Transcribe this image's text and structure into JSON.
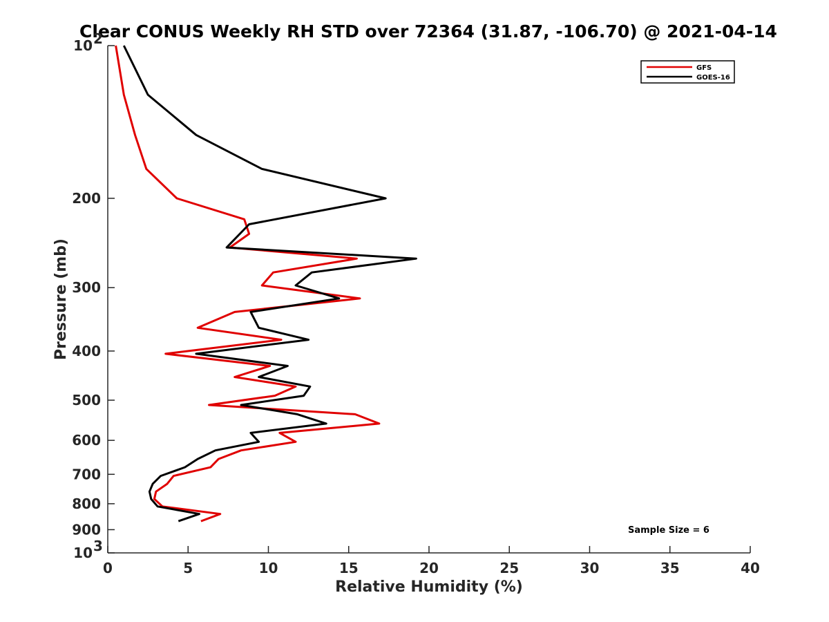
{
  "chart_data": {
    "type": "line",
    "title": "Clear CONUS Weekly RH STD over 72364 (31.87, -106.70) @ 2021-04-14",
    "xlabel": "Relative Humidity (%)",
    "ylabel": "Pressure (mb)",
    "xlim": [
      0,
      40
    ],
    "ylim": [
      100,
      1000
    ],
    "yscale": "log",
    "y_reversed": true,
    "grid": false,
    "legend_position": "top-right",
    "x_ticks": [
      "0",
      "5",
      "10",
      "15",
      "20",
      "25",
      "30",
      "35",
      "40"
    ],
    "y_ticks": [
      {
        "value": 100,
        "label": "10",
        "sup": "2"
      },
      {
        "value": 200,
        "label": "200"
      },
      {
        "value": 300,
        "label": "300"
      },
      {
        "value": 400,
        "label": "400"
      },
      {
        "value": 500,
        "label": "500"
      },
      {
        "value": 600,
        "label": "600"
      },
      {
        "value": 700,
        "label": "700"
      },
      {
        "value": 800,
        "label": "800"
      },
      {
        "value": 900,
        "label": "900"
      },
      {
        "value": 1000,
        "label": "10",
        "sup": "3"
      }
    ],
    "series": [
      {
        "name": "GFS",
        "color": "#e00000",
        "points": [
          [
            0.5,
            100
          ],
          [
            1.0,
            125
          ],
          [
            1.7,
            150
          ],
          [
            2.4,
            175
          ],
          [
            4.3,
            200
          ],
          [
            8.5,
            220
          ],
          [
            8.8,
            235
          ],
          [
            7.6,
            250
          ],
          [
            15.5,
            263
          ],
          [
            10.3,
            280
          ],
          [
            9.6,
            297
          ],
          [
            15.7,
            315
          ],
          [
            7.9,
            335
          ],
          [
            5.6,
            360
          ],
          [
            10.8,
            380
          ],
          [
            3.6,
            405
          ],
          [
            10.1,
            428
          ],
          [
            7.9,
            450
          ],
          [
            11.7,
            470
          ],
          [
            10.4,
            490
          ],
          [
            6.3,
            511
          ],
          [
            15.4,
            533
          ],
          [
            16.9,
            556
          ],
          [
            10.7,
            580
          ],
          [
            11.7,
            604
          ],
          [
            8.3,
            628
          ],
          [
            6.9,
            653
          ],
          [
            6.4,
            678
          ],
          [
            4.1,
            705
          ],
          [
            3.7,
            731
          ],
          [
            3.0,
            757
          ],
          [
            2.9,
            783
          ],
          [
            3.4,
            810
          ],
          [
            7.0,
            838
          ],
          [
            5.8,
            866
          ]
        ]
      },
      {
        "name": "GOES-16",
        "color": "#000000",
        "points": [
          [
            1.0,
            100
          ],
          [
            2.5,
            125
          ],
          [
            5.5,
            150
          ],
          [
            9.6,
            175
          ],
          [
            17.3,
            200
          ],
          [
            8.8,
            225
          ],
          [
            7.4,
            250
          ],
          [
            19.2,
            263
          ],
          [
            12.7,
            280
          ],
          [
            11.7,
            297
          ],
          [
            14.4,
            315
          ],
          [
            8.9,
            335
          ],
          [
            9.4,
            360
          ],
          [
            12.5,
            380
          ],
          [
            5.5,
            405
          ],
          [
            11.2,
            428
          ],
          [
            9.4,
            450
          ],
          [
            12.6,
            470
          ],
          [
            12.2,
            490
          ],
          [
            8.3,
            511
          ],
          [
            11.8,
            533
          ],
          [
            13.6,
            556
          ],
          [
            8.9,
            580
          ],
          [
            9.4,
            604
          ],
          [
            6.7,
            628
          ],
          [
            5.6,
            653
          ],
          [
            4.8,
            678
          ],
          [
            3.3,
            705
          ],
          [
            2.8,
            731
          ],
          [
            2.6,
            757
          ],
          [
            2.7,
            783
          ],
          [
            3.1,
            810
          ],
          [
            5.7,
            838
          ],
          [
            4.4,
            866
          ]
        ]
      }
    ],
    "annotation": "Sample Size = 6"
  }
}
